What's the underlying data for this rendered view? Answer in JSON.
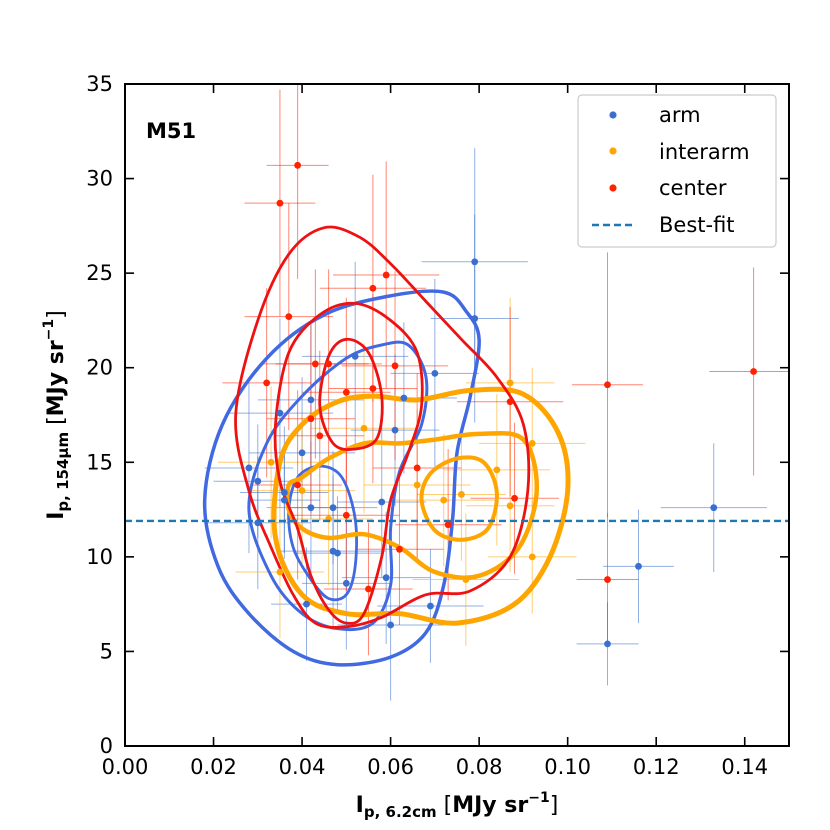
{
  "chart_data": {
    "type": "scatter",
    "title": "",
    "annotation": "M51",
    "xlabel": {
      "main": "I",
      "sub": "p, 6.2cm",
      "units": "MJy sr",
      "units_sup": "−1"
    },
    "ylabel": {
      "main": "I",
      "sub": "p, 154μm",
      "units": "MJy sr",
      "units_sup": "−1"
    },
    "xlim": [
      0.0,
      0.15
    ],
    "ylim": [
      0,
      35
    ],
    "xticks": [
      0.0,
      0.02,
      0.04,
      0.06,
      0.08,
      0.1,
      0.12,
      0.14
    ],
    "xtick_labels": [
      "0.00",
      "0.02",
      "0.04",
      "0.06",
      "0.08",
      "0.10",
      "0.12",
      "0.14"
    ],
    "yticks": [
      0,
      5,
      10,
      15,
      20,
      25,
      30,
      35
    ],
    "ytick_labels": [
      "0",
      "5",
      "10",
      "15",
      "20",
      "25",
      "30",
      "35"
    ],
    "grid": false,
    "legend_position": "top-right",
    "best_fit": {
      "name": "Best-fit",
      "y": 11.9,
      "color": "#1f77b4"
    },
    "series": [
      {
        "name": "arm",
        "color": "#3a6fd0",
        "points": [
          {
            "x": 0.028,
            "y": 14.7,
            "xerr": 0.01,
            "yerr": 4.5
          },
          {
            "x": 0.03,
            "y": 11.8,
            "xerr": 0.012,
            "yerr": 3.5
          },
          {
            "x": 0.03,
            "y": 14.0,
            "xerr": 0.01,
            "yerr": 3.0
          },
          {
            "x": 0.035,
            "y": 17.6,
            "xerr": 0.012,
            "yerr": 5.0
          },
          {
            "x": 0.036,
            "y": 13.4,
            "xerr": 0.01,
            "yerr": 3.5
          },
          {
            "x": 0.036,
            "y": 13.0,
            "xerr": 0.008,
            "yerr": 2.8
          },
          {
            "x": 0.04,
            "y": 15.5,
            "xerr": 0.012,
            "yerr": 4.0
          },
          {
            "x": 0.041,
            "y": 7.5,
            "xerr": 0.008,
            "yerr": 3.0
          },
          {
            "x": 0.042,
            "y": 12.6,
            "xerr": 0.01,
            "yerr": 3.5
          },
          {
            "x": 0.042,
            "y": 18.3,
            "xerr": 0.012,
            "yerr": 4.0
          },
          {
            "x": 0.047,
            "y": 12.6,
            "xerr": 0.01,
            "yerr": 3.0
          },
          {
            "x": 0.047,
            "y": 10.3,
            "xerr": 0.012,
            "yerr": 4.0
          },
          {
            "x": 0.048,
            "y": 10.2,
            "xerr": 0.01,
            "yerr": 3.0
          },
          {
            "x": 0.05,
            "y": 8.6,
            "xerr": 0.01,
            "yerr": 3.5
          },
          {
            "x": 0.052,
            "y": 20.6,
            "xerr": 0.012,
            "yerr": 5.0
          },
          {
            "x": 0.058,
            "y": 12.9,
            "xerr": 0.01,
            "yerr": 4.0
          },
          {
            "x": 0.059,
            "y": 8.9,
            "xerr": 0.01,
            "yerr": 3.5
          },
          {
            "x": 0.06,
            "y": 6.4,
            "xerr": 0.012,
            "yerr": 4.0
          },
          {
            "x": 0.061,
            "y": 16.7,
            "xerr": 0.01,
            "yerr": 4.0
          },
          {
            "x": 0.063,
            "y": 18.4,
            "xerr": 0.012,
            "yerr": 4.0
          },
          {
            "x": 0.07,
            "y": 19.7,
            "xerr": 0.01,
            "yerr": 5.0
          },
          {
            "x": 0.069,
            "y": 7.4,
            "xerr": 0.012,
            "yerr": 3.0
          },
          {
            "x": 0.079,
            "y": 25.6,
            "xerr": 0.012,
            "yerr": 6.0
          },
          {
            "x": 0.079,
            "y": 22.6,
            "xerr": 0.01,
            "yerr": 5.5
          },
          {
            "x": 0.109,
            "y": 5.4,
            "xerr": 0.007,
            "yerr": 2.2
          },
          {
            "x": 0.116,
            "y": 9.5,
            "xerr": 0.008,
            "yerr": 3.0
          },
          {
            "x": 0.133,
            "y": 12.6,
            "xerr": 0.012,
            "yerr": 3.4
          }
        ]
      },
      {
        "name": "interarm",
        "color": "#ffa500",
        "points": [
          {
            "x": 0.033,
            "y": 15.0,
            "xerr": 0.012,
            "yerr": 4.0
          },
          {
            "x": 0.035,
            "y": 9.2,
            "xerr": 0.01,
            "yerr": 3.5
          },
          {
            "x": 0.04,
            "y": 13.5,
            "xerr": 0.012,
            "yerr": 4.0
          },
          {
            "x": 0.046,
            "y": 12.0,
            "xerr": 0.01,
            "yerr": 3.5
          },
          {
            "x": 0.054,
            "y": 16.8,
            "xerr": 0.012,
            "yerr": 4.5
          },
          {
            "x": 0.066,
            "y": 13.8,
            "xerr": 0.012,
            "yerr": 4.0
          },
          {
            "x": 0.072,
            "y": 13.0,
            "xerr": 0.012,
            "yerr": 3.5
          },
          {
            "x": 0.076,
            "y": 13.3,
            "xerr": 0.01,
            "yerr": 3.5
          },
          {
            "x": 0.077,
            "y": 8.8,
            "xerr": 0.012,
            "yerr": 3.5
          },
          {
            "x": 0.084,
            "y": 14.6,
            "xerr": 0.012,
            "yerr": 4.0
          },
          {
            "x": 0.087,
            "y": 19.2,
            "xerr": 0.01,
            "yerr": 4.5
          },
          {
            "x": 0.087,
            "y": 12.7,
            "xerr": 0.01,
            "yerr": 3.5
          },
          {
            "x": 0.092,
            "y": 10.0,
            "xerr": 0.01,
            "yerr": 3.0
          },
          {
            "x": 0.092,
            "y": 16.0,
            "xerr": 0.012,
            "yerr": 4.0
          }
        ]
      },
      {
        "name": "center",
        "color": "#ff2200",
        "points": [
          {
            "x": 0.032,
            "y": 19.2,
            "xerr": 0.01,
            "yerr": 5.0
          },
          {
            "x": 0.035,
            "y": 28.7,
            "xerr": 0.008,
            "yerr": 6.0
          },
          {
            "x": 0.037,
            "y": 22.7,
            "xerr": 0.01,
            "yerr": 6.0
          },
          {
            "x": 0.039,
            "y": 30.7,
            "xerr": 0.007,
            "yerr": 6.0
          },
          {
            "x": 0.039,
            "y": 13.8,
            "xerr": 0.01,
            "yerr": 5.0
          },
          {
            "x": 0.042,
            "y": 17.3,
            "xerr": 0.01,
            "yerr": 5.0
          },
          {
            "x": 0.043,
            "y": 20.2,
            "xerr": 0.012,
            "yerr": 5.0
          },
          {
            "x": 0.044,
            "y": 16.4,
            "xerr": 0.01,
            "yerr": 4.5
          },
          {
            "x": 0.046,
            "y": 20.2,
            "xerr": 0.012,
            "yerr": 5.0
          },
          {
            "x": 0.05,
            "y": 18.7,
            "xerr": 0.01,
            "yerr": 5.0
          },
          {
            "x": 0.05,
            "y": 12.2,
            "xerr": 0.012,
            "yerr": 4.0
          },
          {
            "x": 0.055,
            "y": 8.3,
            "xerr": 0.01,
            "yerr": 3.5
          },
          {
            "x": 0.056,
            "y": 24.2,
            "xerr": 0.012,
            "yerr": 6.0
          },
          {
            "x": 0.056,
            "y": 18.9,
            "xerr": 0.01,
            "yerr": 5.0
          },
          {
            "x": 0.059,
            "y": 24.9,
            "xerr": 0.012,
            "yerr": 6.0
          },
          {
            "x": 0.061,
            "y": 20.1,
            "xerr": 0.012,
            "yerr": 5.0
          },
          {
            "x": 0.062,
            "y": 10.4,
            "xerr": 0.01,
            "yerr": 4.0
          },
          {
            "x": 0.066,
            "y": 14.7,
            "xerr": 0.01,
            "yerr": 5.0
          },
          {
            "x": 0.073,
            "y": 11.7,
            "xerr": 0.012,
            "yerr": 4.0
          },
          {
            "x": 0.087,
            "y": 18.2,
            "xerr": 0.012,
            "yerr": 5.0
          },
          {
            "x": 0.088,
            "y": 13.1,
            "xerr": 0.01,
            "yerr": 4.0
          },
          {
            "x": 0.109,
            "y": 19.1,
            "xerr": 0.008,
            "yerr": 7.0
          },
          {
            "x": 0.109,
            "y": 8.8,
            "xerr": 0.007,
            "yerr": 3.5
          },
          {
            "x": 0.142,
            "y": 19.8,
            "xerr": 0.01,
            "yerr": 5.5
          }
        ]
      }
    ],
    "contours": [
      {
        "series": "arm",
        "color": "#4169e1",
        "level": "outer",
        "width": 3.5,
        "points": [
          [
            0.018,
            13.0
          ],
          [
            0.022,
            17.0
          ],
          [
            0.032,
            20.5
          ],
          [
            0.045,
            22.8
          ],
          [
            0.06,
            23.8
          ],
          [
            0.072,
            24.0
          ],
          [
            0.077,
            23.0
          ],
          [
            0.08,
            21.5
          ],
          [
            0.078,
            18.5
          ],
          [
            0.075,
            15.5
          ],
          [
            0.074,
            12.0
          ],
          [
            0.072,
            8.5
          ],
          [
            0.068,
            6.0
          ],
          [
            0.06,
            4.7
          ],
          [
            0.048,
            4.3
          ],
          [
            0.038,
            5.0
          ],
          [
            0.028,
            7.0
          ],
          [
            0.021,
            9.5
          ]
        ]
      },
      {
        "series": "arm",
        "color": "#4169e1",
        "level": "mid",
        "width": 3.0,
        "points": [
          [
            0.028,
            12.5
          ],
          [
            0.032,
            16.0
          ],
          [
            0.04,
            18.5
          ],
          [
            0.05,
            20.5
          ],
          [
            0.058,
            21.2
          ],
          [
            0.064,
            21.2
          ],
          [
            0.068,
            19.5
          ],
          [
            0.067,
            17.0
          ],
          [
            0.062,
            14.5
          ],
          [
            0.06,
            11.5
          ],
          [
            0.06,
            8.5
          ],
          [
            0.056,
            6.5
          ],
          [
            0.048,
            6.2
          ],
          [
            0.04,
            7.0
          ],
          [
            0.033,
            9.0
          ]
        ]
      },
      {
        "series": "arm",
        "color": "#4169e1",
        "level": "inner",
        "width": 2.8,
        "points": [
          [
            0.037,
            12.5
          ],
          [
            0.039,
            14.2
          ],
          [
            0.044,
            14.8
          ],
          [
            0.049,
            14.2
          ],
          [
            0.052,
            12.0
          ],
          [
            0.052,
            9.5
          ],
          [
            0.05,
            8.0
          ],
          [
            0.046,
            7.8
          ],
          [
            0.042,
            8.8
          ],
          [
            0.038,
            10.5
          ]
        ]
      },
      {
        "series": "interarm",
        "color": "#ffa500",
        "level": "outer",
        "width": 5.0,
        "points": [
          [
            0.035,
            15.0
          ],
          [
            0.04,
            17.0
          ],
          [
            0.048,
            18.2
          ],
          [
            0.056,
            18.5
          ],
          [
            0.066,
            18.3
          ],
          [
            0.078,
            18.8
          ],
          [
            0.09,
            18.6
          ],
          [
            0.098,
            16.5
          ],
          [
            0.1,
            13.5
          ],
          [
            0.096,
            10.0
          ],
          [
            0.088,
            7.5
          ],
          [
            0.075,
            6.5
          ],
          [
            0.062,
            7.0
          ],
          [
            0.05,
            7.0
          ],
          [
            0.04,
            8.0
          ],
          [
            0.034,
            11.0
          ]
        ]
      },
      {
        "series": "interarm",
        "color": "#ffa500",
        "level": "mid",
        "width": 4.5,
        "points": [
          [
            0.037,
            13.8
          ],
          [
            0.04,
            14.2
          ],
          [
            0.046,
            15.2
          ],
          [
            0.054,
            16.0
          ],
          [
            0.062,
            16.0
          ],
          [
            0.07,
            16.2
          ],
          [
            0.08,
            16.5
          ],
          [
            0.09,
            16.2
          ],
          [
            0.093,
            13.5
          ],
          [
            0.089,
            10.5
          ],
          [
            0.08,
            9.0
          ],
          [
            0.07,
            9.2
          ],
          [
            0.062,
            10.5
          ],
          [
            0.054,
            11.2
          ],
          [
            0.046,
            11.0
          ],
          [
            0.04,
            11.5
          ],
          [
            0.037,
            12.5
          ]
        ]
      },
      {
        "series": "interarm",
        "color": "#ffa500",
        "level": "inner",
        "width": 4.0,
        "points": [
          [
            0.067,
            13.0
          ],
          [
            0.069,
            14.4
          ],
          [
            0.075,
            15.2
          ],
          [
            0.081,
            15.0
          ],
          [
            0.084,
            13.4
          ],
          [
            0.082,
            11.5
          ],
          [
            0.076,
            10.9
          ],
          [
            0.07,
            11.4
          ]
        ]
      },
      {
        "series": "center",
        "color": "#ee1111",
        "level": "outer",
        "width": 2.8,
        "points": [
          [
            0.025,
            17.5
          ],
          [
            0.03,
            22.5
          ],
          [
            0.037,
            26.0
          ],
          [
            0.045,
            27.4
          ],
          [
            0.053,
            26.9
          ],
          [
            0.06,
            25.5
          ],
          [
            0.068,
            23.5
          ],
          [
            0.076,
            21.5
          ],
          [
            0.084,
            19.5
          ],
          [
            0.09,
            17.0
          ],
          [
            0.091,
            13.5
          ],
          [
            0.087,
            10.0
          ],
          [
            0.078,
            8.2
          ],
          [
            0.068,
            8.0
          ],
          [
            0.058,
            6.8
          ],
          [
            0.05,
            6.3
          ],
          [
            0.043,
            6.5
          ],
          [
            0.038,
            8.0
          ],
          [
            0.033,
            10.5
          ],
          [
            0.028,
            13.5
          ]
        ]
      },
      {
        "series": "center",
        "color": "#ee1111",
        "level": "mid",
        "width": 2.8,
        "points": [
          [
            0.034,
            17.0
          ],
          [
            0.037,
            20.8
          ],
          [
            0.044,
            22.8
          ],
          [
            0.052,
            23.4
          ],
          [
            0.06,
            22.5
          ],
          [
            0.066,
            20.8
          ],
          [
            0.067,
            18.0
          ],
          [
            0.064,
            15.5
          ],
          [
            0.06,
            13.0
          ],
          [
            0.058,
            10.0
          ],
          [
            0.054,
            7.0
          ],
          [
            0.05,
            6.5
          ],
          [
            0.046,
            7.2
          ],
          [
            0.042,
            9.0
          ],
          [
            0.039,
            11.5
          ],
          [
            0.035,
            14.0
          ]
        ]
      },
      {
        "series": "center",
        "color": "#ee1111",
        "level": "inner",
        "width": 2.8,
        "points": [
          [
            0.044,
            18.0
          ],
          [
            0.046,
            20.6
          ],
          [
            0.05,
            21.5
          ],
          [
            0.055,
            20.8
          ],
          [
            0.058,
            18.5
          ],
          [
            0.057,
            16.3
          ],
          [
            0.052,
            15.7
          ],
          [
            0.047,
            16.0
          ]
        ]
      }
    ]
  }
}
